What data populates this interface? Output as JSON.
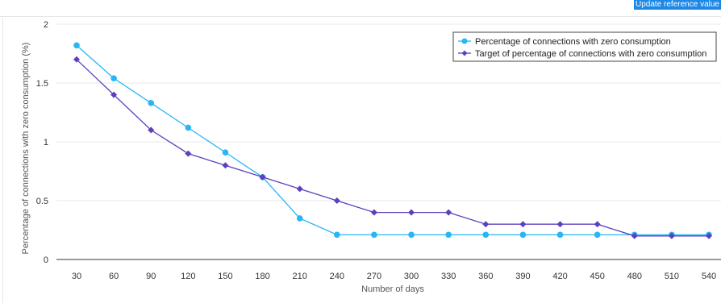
{
  "toolbar": {
    "update_button_label": "Update reference value"
  },
  "colors": {
    "series_actual": "#29b6f6",
    "series_target": "#5e3fbe",
    "grid": "#e9e9e9",
    "axis": "#333333",
    "button": "#1e88e5"
  },
  "chart_data": {
    "type": "line",
    "title": "",
    "xlabel": "Number of days",
    "ylabel": "Percentage of connections with zero consumption (%)",
    "x": [
      30,
      60,
      90,
      120,
      150,
      180,
      210,
      240,
      270,
      300,
      330,
      360,
      390,
      420,
      450,
      480,
      510,
      540
    ],
    "xtick_labels": [
      "30",
      "60",
      "90",
      "120",
      "150",
      "180",
      "210",
      "240",
      "270",
      "300",
      "330",
      "360",
      "390",
      "420",
      "450",
      "480",
      "510",
      "540"
    ],
    "ylim": [
      0,
      2
    ],
    "yticks": [
      0,
      0.5,
      1,
      1.5,
      2
    ],
    "ytick_labels": [
      "0",
      "0.5",
      "1",
      "1.5",
      "2"
    ],
    "grid": true,
    "legend_position": "top-right",
    "series": [
      {
        "name": "Percentage of connections with zero consumption",
        "marker": "circle",
        "color": "#29b6f6",
        "values": [
          1.82,
          1.54,
          1.33,
          1.12,
          0.91,
          0.7,
          0.35,
          0.21,
          0.21,
          0.21,
          0.21,
          0.21,
          0.21,
          0.21,
          0.21,
          0.21,
          0.21,
          0.21
        ]
      },
      {
        "name": "Target of percentage of connections with zero consumption",
        "marker": "diamond",
        "color": "#5e3fbe",
        "values": [
          1.7,
          1.4,
          1.1,
          0.9,
          0.8,
          0.7,
          0.6,
          0.5,
          0.4,
          0.4,
          0.4,
          0.3,
          0.3,
          0.3,
          0.3,
          0.2,
          0.2,
          0.2
        ]
      }
    ]
  }
}
